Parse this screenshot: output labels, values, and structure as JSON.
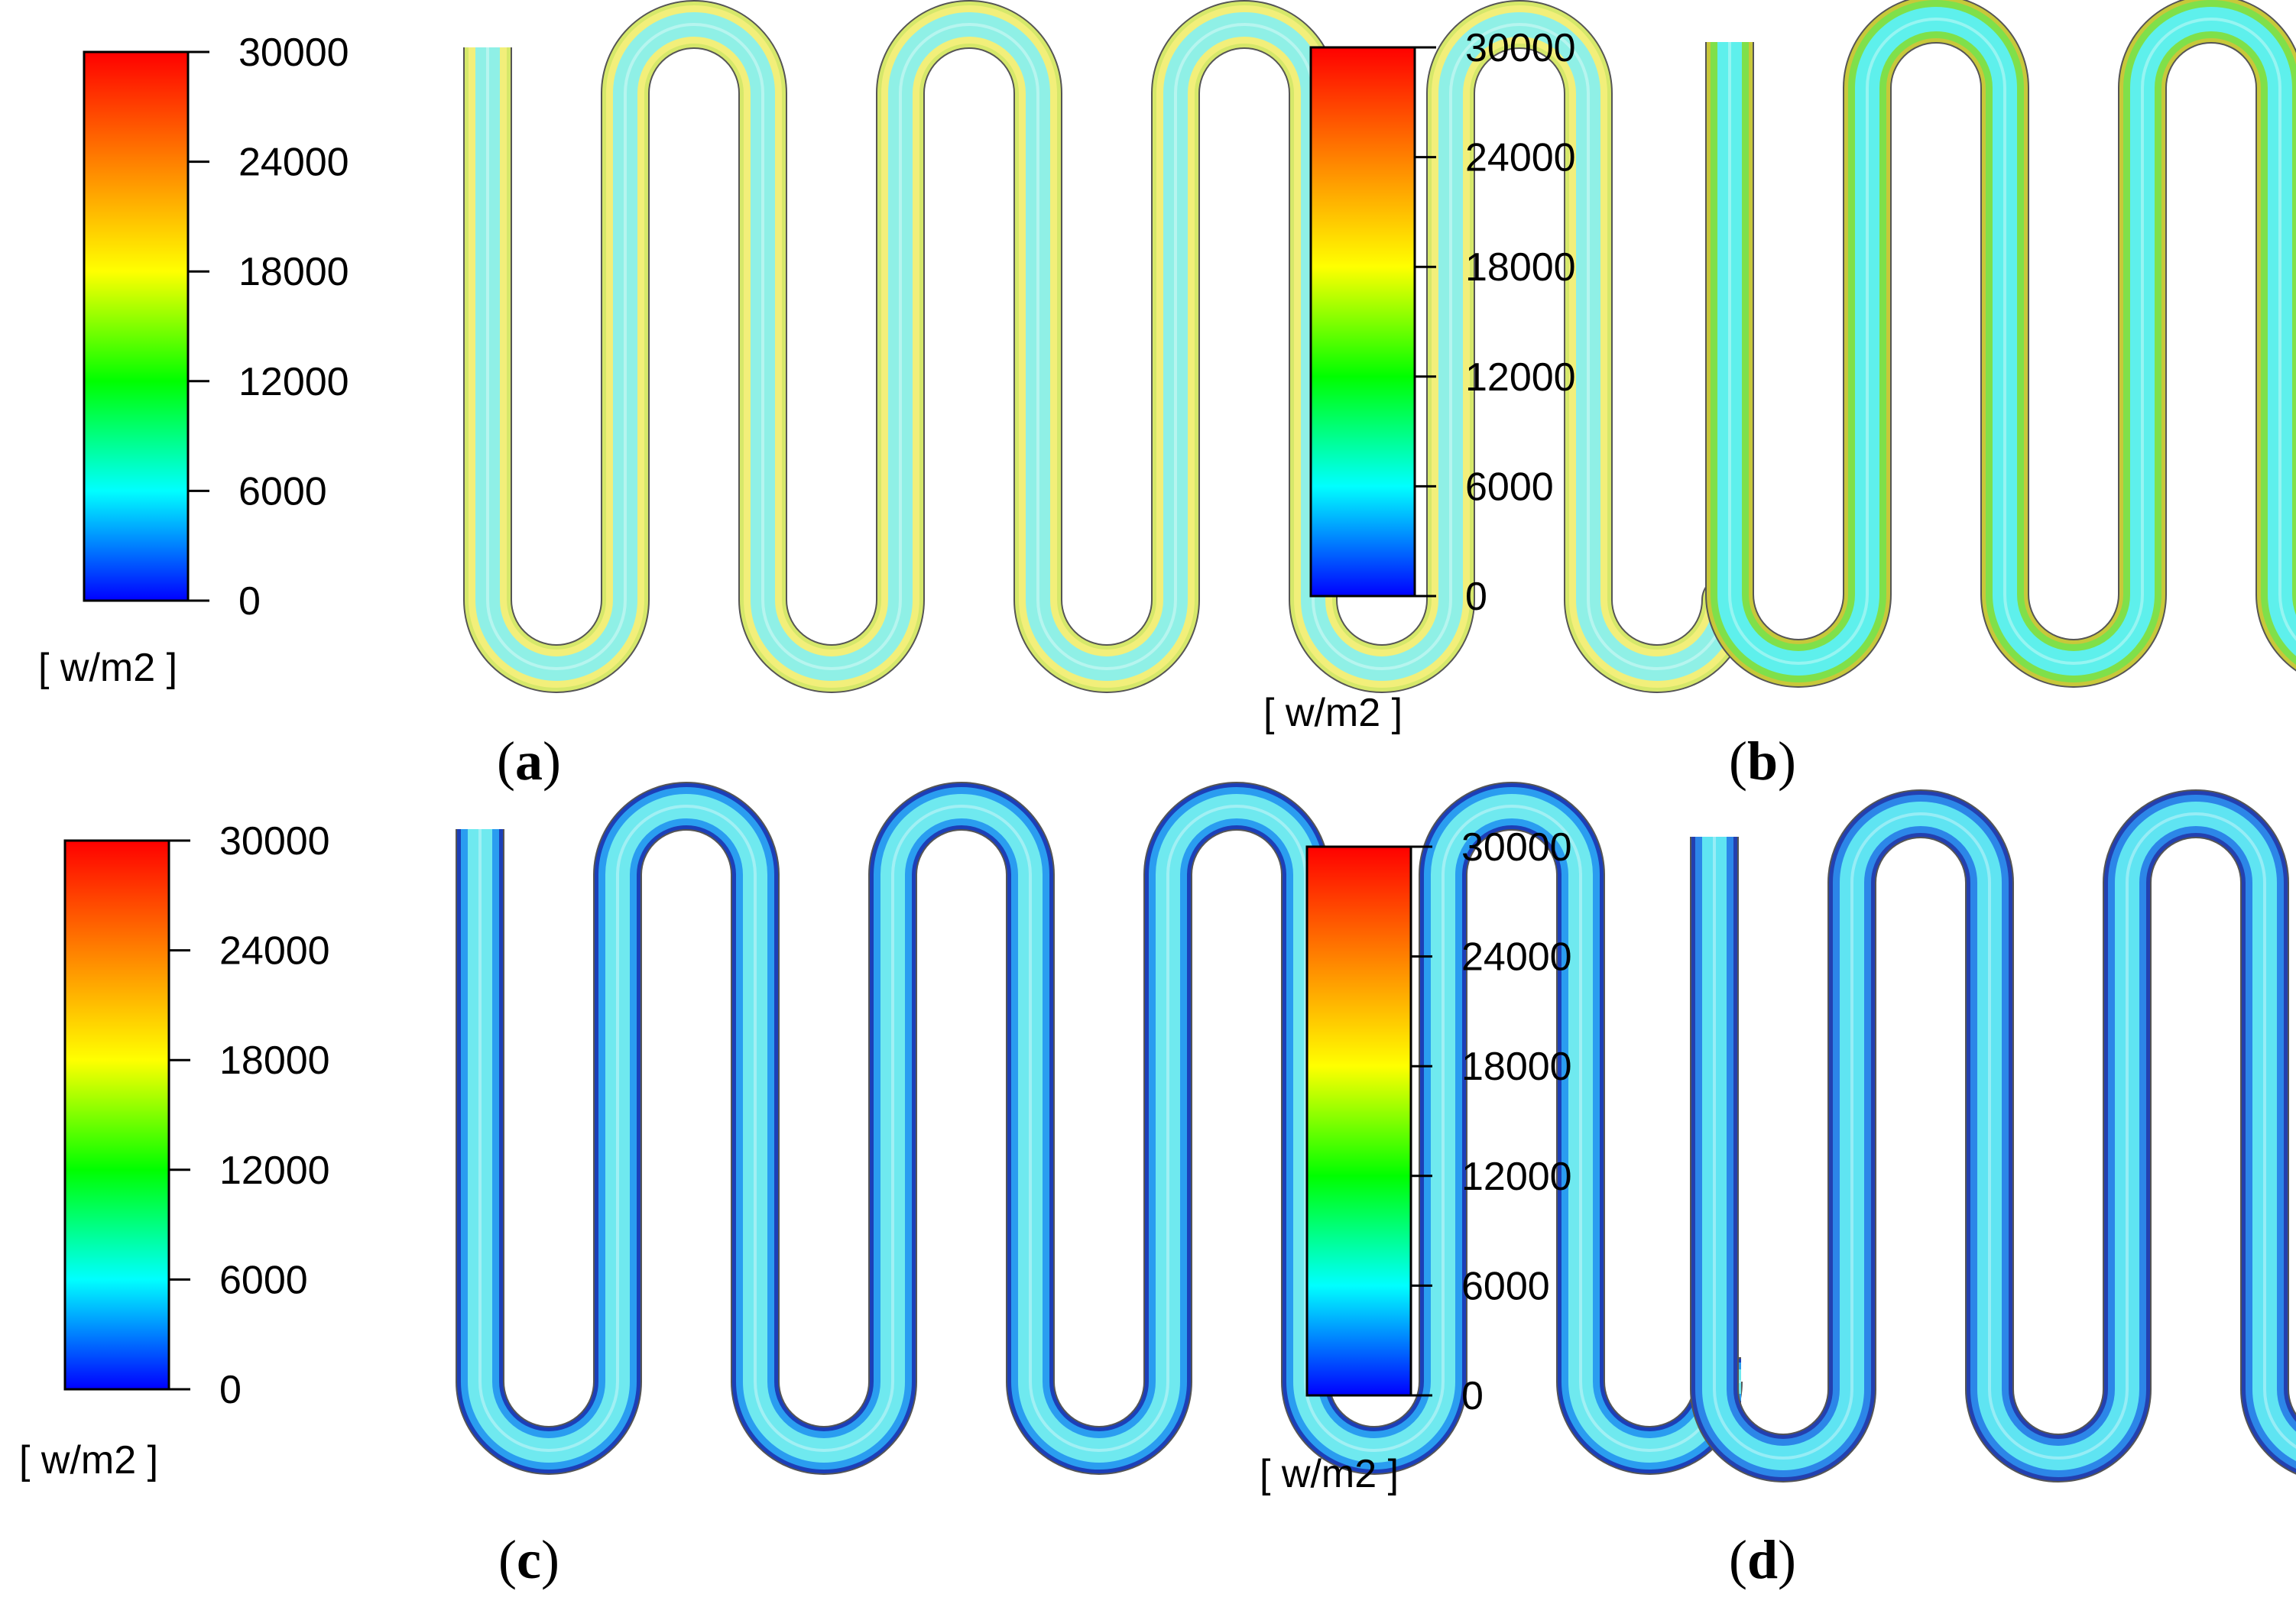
{
  "colorbar": {
    "ticks": [
      "30000",
      "24000",
      "18000",
      "12000",
      "6000",
      "0"
    ],
    "unit": "[ w/m2 ]",
    "stops": [
      "#0000ff",
      "#0080ff",
      "#00ffff",
      "#00ff80",
      "#00ff00",
      "#80ff00",
      "#ffff00",
      "#ffbf00",
      "#ff8000",
      "#ff4000",
      "#ff0000"
    ]
  },
  "panels": [
    {
      "id": "a",
      "caption_open": "(",
      "caption_letter": "a",
      "caption_close": ")",
      "core_color": "#8ff0e6",
      "edge_color": "#f2ef7a",
      "wall_color": "#d6e86a"
    },
    {
      "id": "b",
      "caption_open": "(",
      "caption_letter": "b",
      "caption_close": ")",
      "core_color": "#5ef0ec",
      "edge_color": "#7fe04a",
      "wall_color": "#c8c83a"
    },
    {
      "id": "c",
      "caption_open": "(",
      "caption_letter": "c",
      "caption_close": ")",
      "core_color": "#6fe9ef",
      "edge_color": "#2a9df0",
      "wall_color": "#1c3fb8"
    },
    {
      "id": "d",
      "caption_open": "(",
      "caption_letter": "d",
      "caption_close": ")",
      "core_color": "#5fe4f2",
      "edge_color": "#2c86e8",
      "wall_color": "#2340b0"
    }
  ]
}
